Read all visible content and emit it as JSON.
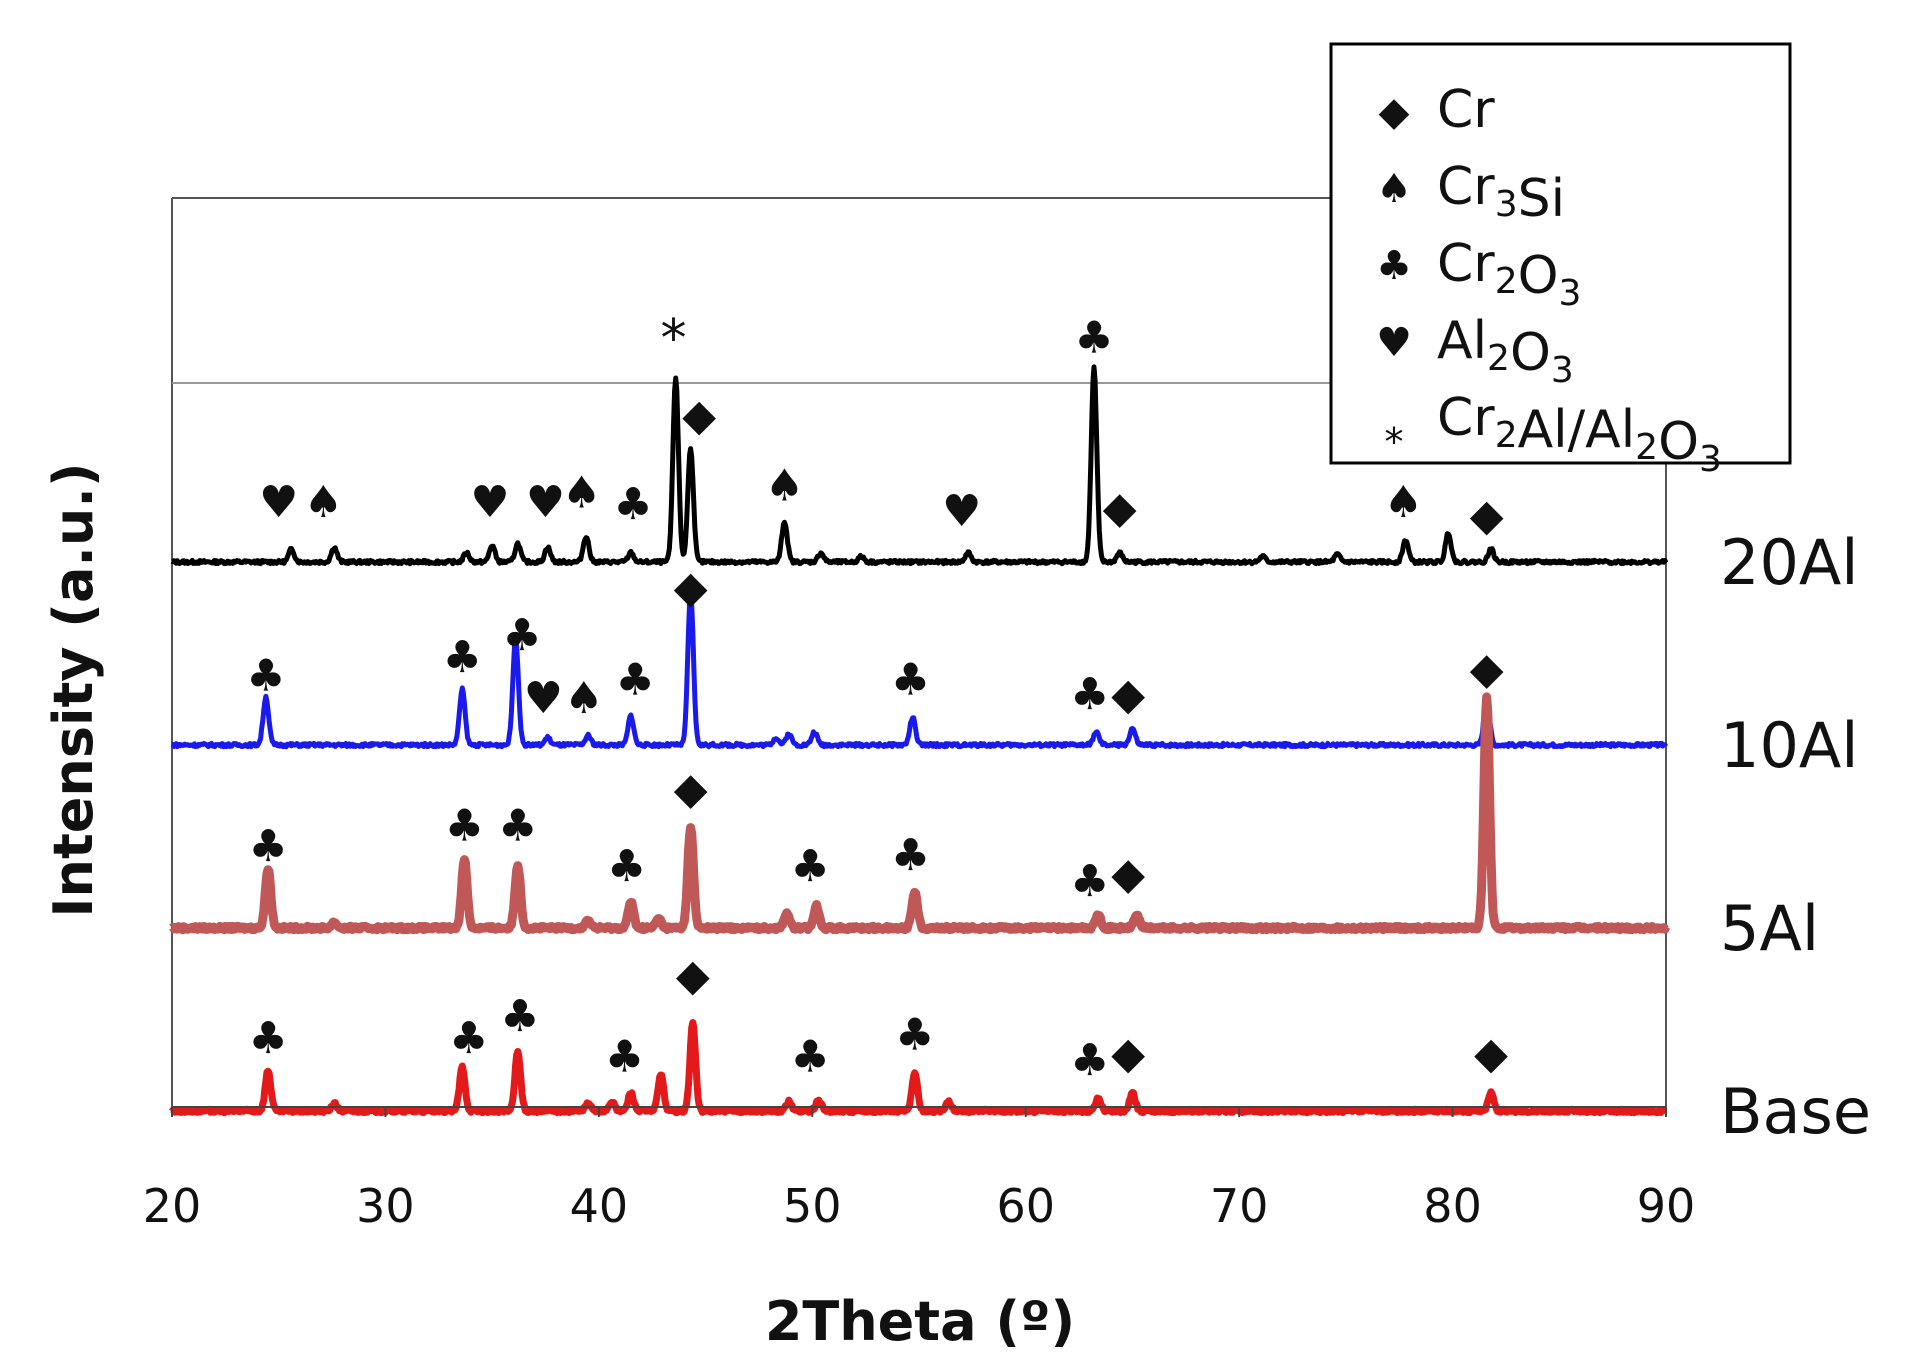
{
  "chart_data": {
    "type": "line",
    "title": "",
    "xlabel": "2Theta (º)",
    "ylabel": "Intensity  (a.u.)",
    "xlim": [
      20,
      90
    ],
    "xticks": [
      20,
      30,
      40,
      50,
      60,
      70,
      80,
      90
    ],
    "grid": false,
    "legend_position": "top-right",
    "legend": [
      {
        "symbol": "◆",
        "label": "Cr",
        "parts": [
          {
            "t": "Cr"
          }
        ]
      },
      {
        "symbol": "♠",
        "label": "Cr3Si",
        "parts": [
          {
            "t": "Cr"
          },
          {
            "t": "3",
            "sub": true
          },
          {
            "t": "Si"
          }
        ]
      },
      {
        "symbol": "♣",
        "label": "Cr2O3",
        "parts": [
          {
            "t": "Cr"
          },
          {
            "t": "2",
            "sub": true
          },
          {
            "t": "O"
          },
          {
            "t": "3",
            "sub": true
          }
        ]
      },
      {
        "symbol": "♥",
        "label": "Al2O3",
        "parts": [
          {
            "t": "Al"
          },
          {
            "t": "2",
            "sub": true
          },
          {
            "t": "O"
          },
          {
            "t": "3",
            "sub": true
          }
        ]
      },
      {
        "symbol": "*",
        "label": "Cr2Al/Al2O3",
        "parts": [
          {
            "t": "Cr"
          },
          {
            "t": "2",
            "sub": true
          },
          {
            "t": "Al/Al"
          },
          {
            "t": "2",
            "sub": true
          },
          {
            "t": "O"
          },
          {
            "t": "3",
            "sub": true
          }
        ]
      }
    ],
    "series": [
      {
        "name": "20Al",
        "color": "#000000",
        "baseline": 0,
        "width": 5,
        "peaks": [
          [
            25.6,
            0.07
          ],
          [
            27.6,
            0.08
          ],
          [
            33.8,
            0.05
          ],
          [
            35.0,
            0.09
          ],
          [
            36.2,
            0.1
          ],
          [
            37.6,
            0.08
          ],
          [
            39.4,
            0.14
          ],
          [
            41.5,
            0.05
          ],
          [
            43.6,
            1.0
          ],
          [
            44.3,
            0.62
          ],
          [
            48.7,
            0.22
          ],
          [
            50.4,
            0.05
          ],
          [
            52.3,
            0.03
          ],
          [
            57.3,
            0.05
          ],
          [
            63.2,
            1.05
          ],
          [
            64.4,
            0.05
          ],
          [
            71.1,
            0.03
          ],
          [
            74.6,
            0.04
          ],
          [
            77.8,
            0.12
          ],
          [
            79.8,
            0.16
          ],
          [
            81.8,
            0.07
          ]
        ],
        "annotations": [
          {
            "x": 25.0,
            "y": 0.33,
            "sym": "♥"
          },
          {
            "x": 27.1,
            "y": 0.33,
            "sym": "♠"
          },
          {
            "x": 34.9,
            "y": 0.33,
            "sym": "♥"
          },
          {
            "x": 37.5,
            "y": 0.33,
            "sym": "♥"
          },
          {
            "x": 39.2,
            "y": 0.38,
            "sym": "♠"
          },
          {
            "x": 41.6,
            "y": 0.32,
            "sym": "♣"
          },
          {
            "x": 43.5,
            "y": 1.2,
            "sym": "*"
          },
          {
            "x": 44.7,
            "y": 0.8,
            "sym": "◆"
          },
          {
            "x": 48.7,
            "y": 0.42,
            "sym": "♠"
          },
          {
            "x": 57.0,
            "y": 0.28,
            "sym": "♥"
          },
          {
            "x": 63.2,
            "y": 1.22,
            "sym": "♣"
          },
          {
            "x": 64.4,
            "y": 0.3,
            "sym": "◆"
          },
          {
            "x": 77.7,
            "y": 0.33,
            "sym": "♠"
          },
          {
            "x": 81.6,
            "y": 0.26,
            "sym": "◆"
          }
        ]
      },
      {
        "name": "10Al",
        "color": "#1a1aee",
        "baseline": -1,
        "width": 5,
        "peaks": [
          [
            24.4,
            0.26
          ],
          [
            33.6,
            0.3
          ],
          [
            36.1,
            0.58
          ],
          [
            37.6,
            0.04
          ],
          [
            39.5,
            0.05
          ],
          [
            41.5,
            0.16
          ],
          [
            44.3,
            0.82
          ],
          [
            48.3,
            0.04
          ],
          [
            48.9,
            0.06
          ],
          [
            50.1,
            0.07
          ],
          [
            54.7,
            0.15
          ],
          [
            63.3,
            0.07
          ],
          [
            65.0,
            0.09
          ],
          [
            81.6,
            0.25
          ]
        ],
        "annotations": [
          {
            "x": 24.4,
            "y": 0.38,
            "sym": "♣"
          },
          {
            "x": 33.6,
            "y": 0.48,
            "sym": "♣"
          },
          {
            "x": 36.4,
            "y": 0.6,
            "sym": "♣"
          },
          {
            "x": 37.4,
            "y": 0.26,
            "sym": "♥"
          },
          {
            "x": 39.3,
            "y": 0.26,
            "sym": "♠"
          },
          {
            "x": 41.7,
            "y": 0.36,
            "sym": "♣"
          },
          {
            "x": 44.3,
            "y": 0.86,
            "sym": "◆"
          },
          {
            "x": 54.6,
            "y": 0.36,
            "sym": "♣"
          },
          {
            "x": 63.0,
            "y": 0.28,
            "sym": "♣"
          },
          {
            "x": 64.8,
            "y": 0.28,
            "sym": "◆"
          },
          {
            "x": 81.6,
            "y": 0.42,
            "sym": "◆"
          }
        ]
      },
      {
        "name": "5Al",
        "color": "#c05858",
        "baseline": -2,
        "width": 9,
        "peaks": [
          [
            24.5,
            0.32
          ],
          [
            27.6,
            0.03
          ],
          [
            33.7,
            0.37
          ],
          [
            36.2,
            0.34
          ],
          [
            39.5,
            0.04
          ],
          [
            41.5,
            0.14
          ],
          [
            42.8,
            0.05
          ],
          [
            44.3,
            0.55
          ],
          [
            48.8,
            0.08
          ],
          [
            50.2,
            0.12
          ],
          [
            54.8,
            0.2
          ],
          [
            63.4,
            0.07
          ],
          [
            65.2,
            0.07
          ],
          [
            81.6,
            1.25
          ]
        ],
        "annotations": [
          {
            "x": 24.5,
            "y": 0.45,
            "sym": "♣"
          },
          {
            "x": 33.7,
            "y": 0.56,
            "sym": "♣"
          },
          {
            "x": 36.2,
            "y": 0.56,
            "sym": "♣"
          },
          {
            "x": 41.3,
            "y": 0.34,
            "sym": "♣"
          },
          {
            "x": 44.3,
            "y": 0.76,
            "sym": "◆"
          },
          {
            "x": 49.9,
            "y": 0.34,
            "sym": "♣"
          },
          {
            "x": 54.6,
            "y": 0.4,
            "sym": "♣"
          },
          {
            "x": 63.0,
            "y": 0.26,
            "sym": "♣"
          },
          {
            "x": 64.8,
            "y": 0.3,
            "sym": "◆"
          }
        ]
      },
      {
        "name": "Base",
        "color": "#e41a1a",
        "baseline": -3,
        "width": 7,
        "peaks": [
          [
            24.5,
            0.22
          ],
          [
            27.6,
            0.04
          ],
          [
            33.6,
            0.24
          ],
          [
            36.2,
            0.32
          ],
          [
            39.5,
            0.04
          ],
          [
            40.6,
            0.05
          ],
          [
            41.5,
            0.1
          ],
          [
            42.9,
            0.2
          ],
          [
            44.4,
            0.48
          ],
          [
            48.9,
            0.05
          ],
          [
            50.3,
            0.06
          ],
          [
            54.8,
            0.21
          ],
          [
            56.4,
            0.05
          ],
          [
            63.4,
            0.07
          ],
          [
            65.0,
            0.1
          ],
          [
            81.8,
            0.1
          ]
        ],
        "annotations": [
          {
            "x": 24.5,
            "y": 0.4,
            "sym": "♣"
          },
          {
            "x": 33.9,
            "y": 0.4,
            "sym": "♣"
          },
          {
            "x": 36.3,
            "y": 0.52,
            "sym": "♣"
          },
          {
            "x": 41.2,
            "y": 0.3,
            "sym": "♣"
          },
          {
            "x": 44.4,
            "y": 0.74,
            "sym": "◆"
          },
          {
            "x": 49.9,
            "y": 0.3,
            "sym": "♣"
          },
          {
            "x": 54.8,
            "y": 0.42,
            "sym": "♣"
          },
          {
            "x": 63.0,
            "y": 0.28,
            "sym": "♣"
          },
          {
            "x": 64.8,
            "y": 0.32,
            "sym": "◆"
          },
          {
            "x": 81.8,
            "y": 0.32,
            "sym": "◆"
          }
        ]
      }
    ]
  }
}
